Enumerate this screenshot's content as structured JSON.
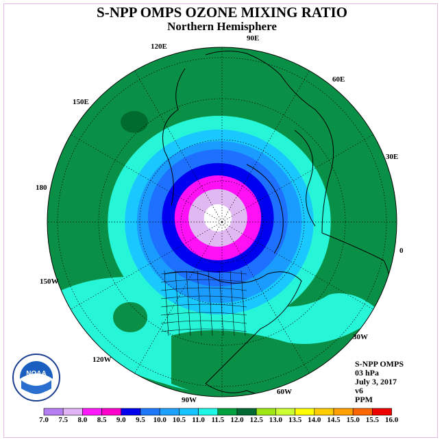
{
  "title": "S-NPP OMPS OZONE MIXING RATIO",
  "subtitle": "Northern Hemisphere",
  "info": {
    "instrument": "S-NPP OMPS",
    "level": "03 hPa",
    "date": "July 3, 2017",
    "version": "v6",
    "units": "PPM"
  },
  "longitude_labels": [
    "90E",
    "60E",
    "30E",
    "0",
    "30W",
    "60W",
    "90W",
    "120W",
    "150W",
    "180",
    "150E",
    "120E"
  ],
  "colorbar": {
    "ticks": [
      "7.0",
      "7.5",
      "8.0",
      "8.5",
      "9.0",
      "9.5",
      "10.0",
      "10.5",
      "11.0",
      "11.5",
      "12.0",
      "12.5",
      "13.0",
      "13.5",
      "14.0",
      "14.5",
      "15.0",
      "15.5",
      "16.0"
    ],
    "colors": [
      "#b57ef2",
      "#e0b4f5",
      "#ff1aff",
      "#ff00cc",
      "#0000ee",
      "#1e78ff",
      "#1ea0ff",
      "#17c4ff",
      "#1ef7e6",
      "#00a040",
      "#006830",
      "#a0e614",
      "#ccff33",
      "#ffff00",
      "#ffcc00",
      "#ffa000",
      "#ff6600",
      "#ee0000",
      "#8b5a3c"
    ]
  },
  "logo_text": "NOAA",
  "colors": {
    "outer": "#099046",
    "dark_green": "#006b2e",
    "aqua": "#26f5d8",
    "lightblue": "#19c8ff",
    "midblue": "#1a9cff",
    "blue": "#1e70ff",
    "darkblue": "#0000f0",
    "magenta": "#ff10f5",
    "lavender": "#e1b9f2",
    "white": "#ffffff"
  }
}
